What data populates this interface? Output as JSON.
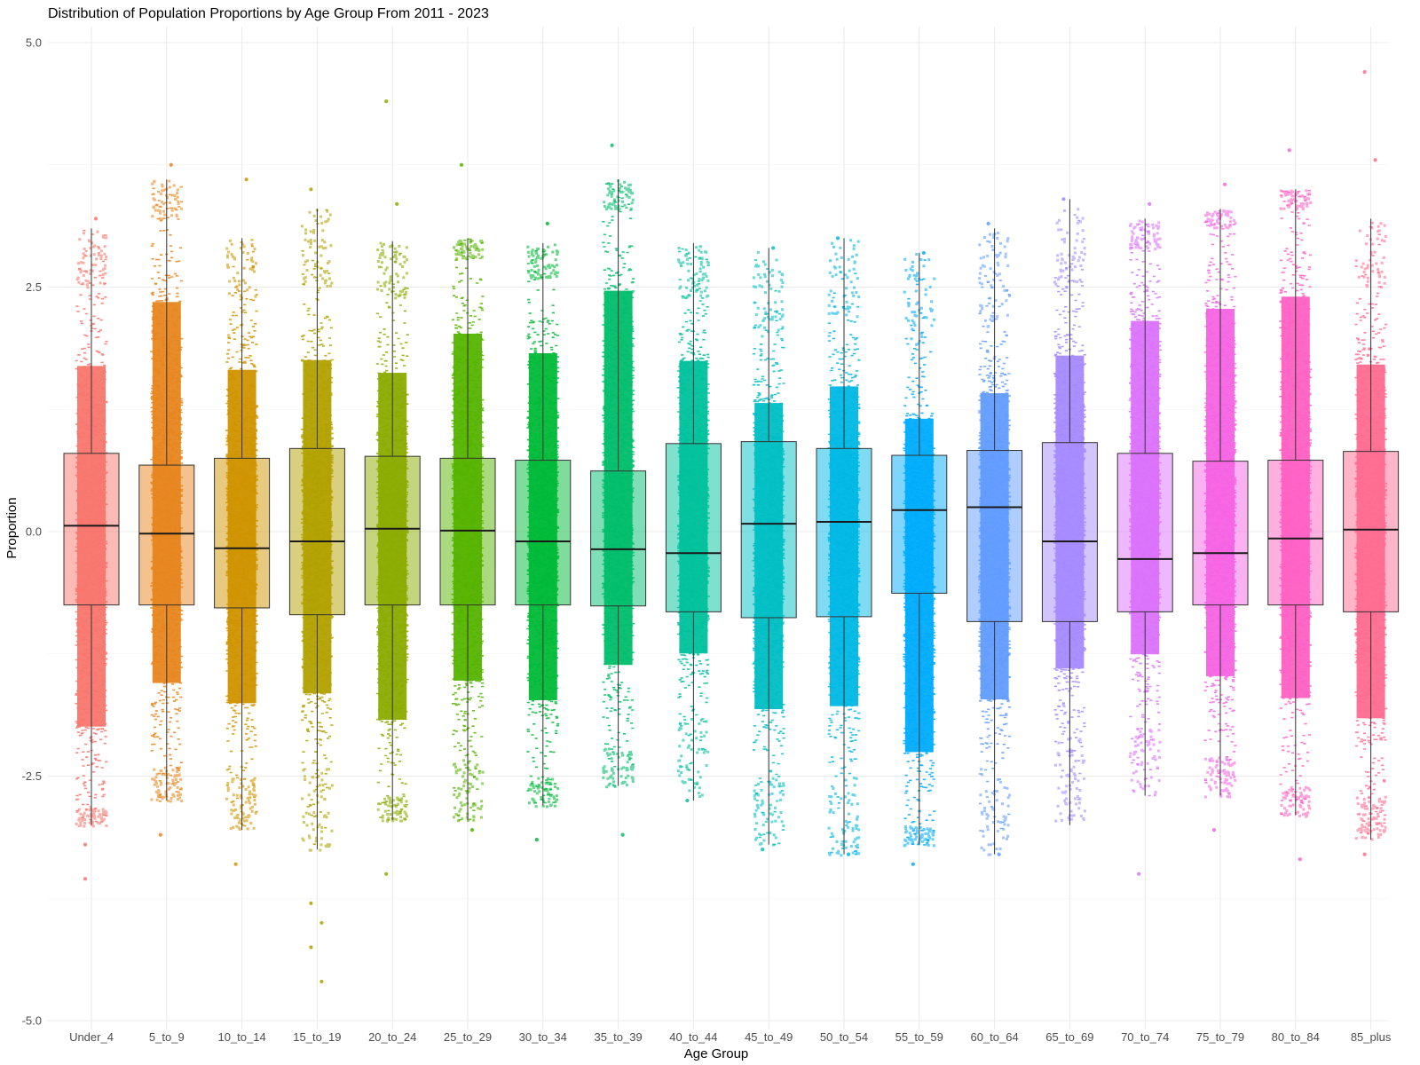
{
  "chart_data": {
    "type": "boxplot",
    "title": "Distribution of Population Proportions by Age Group From 2011 - 2023",
    "xlabel": "Age Group",
    "ylabel": "Proportion",
    "ylim": [
      -5.0,
      5.0
    ],
    "y_ticks": [
      {
        "value": 5.0,
        "label": "5.0"
      },
      {
        "value": 2.5,
        "label": "2.5"
      },
      {
        "value": 0.0,
        "label": "0.0"
      },
      {
        "value": -2.5,
        "label": "-2.5"
      },
      {
        "value": -5.0,
        "label": "-5.0"
      }
    ],
    "grid": true,
    "legend": "none",
    "categories": [
      "Under_4",
      "5_to_9",
      "10_to_14",
      "15_to_19",
      "20_to_24",
      "25_to_29",
      "30_to_34",
      "35_to_39",
      "40_to_44",
      "45_to_49",
      "50_to_54",
      "55_to_59",
      "60_to_64",
      "65_to_69",
      "70_to_74",
      "75_to_79",
      "80_to_84",
      "85_plus"
    ],
    "colors": [
      "#F8766D",
      "#E7851E",
      "#D09400",
      "#B2A100",
      "#8BAB00",
      "#55B400",
      "#00BA38",
      "#00BE6C",
      "#00C19C",
      "#00BFC4",
      "#00B8E5",
      "#00ACFC",
      "#619CFF",
      "#A58AFF",
      "#DB72FB",
      "#F564E3",
      "#FF61C3",
      "#FF6C91"
    ],
    "boxes": [
      {
        "group": "Under_4",
        "whisker_low": -3.0,
        "q1": -0.75,
        "median": 0.06,
        "q3": 0.8,
        "whisker_high": 3.1,
        "spread_low": -2.8,
        "spread_high": 2.5
      },
      {
        "group": "5_to_9",
        "whisker_low": -2.75,
        "q1": -0.75,
        "median": -0.02,
        "q3": 0.68,
        "whisker_high": 3.6,
        "spread_low": -2.4,
        "spread_high": 3.2
      },
      {
        "group": "10_to_14",
        "whisker_low": -3.05,
        "q1": -0.78,
        "median": -0.17,
        "q3": 0.75,
        "whisker_high": 3.0,
        "spread_low": -2.5,
        "spread_high": 2.4
      },
      {
        "group": "15_to_19",
        "whisker_low": -3.25,
        "q1": -0.85,
        "median": -0.1,
        "q3": 0.85,
        "whisker_high": 3.3,
        "spread_low": -2.4,
        "spread_high": 2.5
      },
      {
        "group": "20_to_24",
        "whisker_low": -2.95,
        "q1": -0.75,
        "median": 0.03,
        "q3": 0.77,
        "whisker_high": 2.97,
        "spread_low": -2.7,
        "spread_high": 2.4
      },
      {
        "group": "25_to_29",
        "whisker_low": -2.95,
        "q1": -0.75,
        "median": 0.01,
        "q3": 0.75,
        "whisker_high": 3.0,
        "spread_low": -2.3,
        "spread_high": 2.8
      },
      {
        "group": "30_to_34",
        "whisker_low": -2.8,
        "q1": -0.75,
        "median": -0.1,
        "q3": 0.73,
        "whisker_high": 2.95,
        "spread_low": -2.5,
        "spread_high": 2.6
      },
      {
        "group": "35_to_39",
        "whisker_low": -2.6,
        "q1": -0.76,
        "median": -0.18,
        "q3": 0.62,
        "whisker_high": 3.6,
        "spread_low": -2.2,
        "spread_high": 3.3
      },
      {
        "group": "40_to_44",
        "whisker_low": -2.75,
        "q1": -0.82,
        "median": -0.22,
        "q3": 0.9,
        "whisker_high": 2.95,
        "spread_low": -1.9,
        "spread_high": 2.4
      },
      {
        "group": "45_to_49",
        "whisker_low": -3.2,
        "q1": -0.88,
        "median": 0.08,
        "q3": 0.92,
        "whisker_high": 2.9,
        "spread_low": -2.5,
        "spread_high": 2.0
      },
      {
        "group": "50_to_54",
        "whisker_low": -3.3,
        "q1": -0.87,
        "median": 0.1,
        "q3": 0.85,
        "whisker_high": 3.0,
        "spread_low": -2.5,
        "spread_high": 2.2
      },
      {
        "group": "55_to_59",
        "whisker_low": -3.2,
        "q1": -0.63,
        "median": 0.22,
        "q3": 0.78,
        "whisker_high": 2.85,
        "spread_low": -3.0,
        "spread_high": 1.9
      },
      {
        "group": "60_to_64",
        "whisker_low": -3.3,
        "q1": -0.92,
        "median": 0.25,
        "q3": 0.83,
        "whisker_high": 3.1,
        "spread_low": -2.4,
        "spread_high": 2.1
      },
      {
        "group": "65_to_69",
        "whisker_low": -3.0,
        "q1": -0.92,
        "median": -0.1,
        "q3": 0.91,
        "whisker_high": 3.4,
        "spread_low": -2.1,
        "spread_high": 2.5
      },
      {
        "group": "70_to_74",
        "whisker_low": -2.7,
        "q1": -0.82,
        "median": -0.28,
        "q3": 0.8,
        "whisker_high": 3.2,
        "spread_low": -2.0,
        "spread_high": 2.9
      },
      {
        "group": "75_to_79",
        "whisker_low": -2.7,
        "q1": -0.75,
        "median": -0.22,
        "q3": 0.72,
        "whisker_high": 3.3,
        "spread_low": -2.3,
        "spread_high": 3.1
      },
      {
        "group": "80_to_84",
        "whisker_low": -2.9,
        "q1": -0.75,
        "median": -0.07,
        "q3": 0.73,
        "whisker_high": 3.5,
        "spread_low": -2.6,
        "spread_high": 3.3
      },
      {
        "group": "85_plus",
        "whisker_low": -3.15,
        "q1": -0.82,
        "median": 0.02,
        "q3": 0.82,
        "whisker_high": 3.2,
        "spread_low": -2.7,
        "spread_high": 2.5
      }
    ],
    "outliers": [
      {
        "group": "Under_4",
        "values": [
          -3.55,
          3.2,
          -3.2
        ]
      },
      {
        "group": "5_to_9",
        "values": [
          -3.1,
          3.75
        ]
      },
      {
        "group": "10_to_14",
        "values": [
          -3.4,
          3.6
        ]
      },
      {
        "group": "15_to_19",
        "values": [
          -3.8,
          -4.0,
          -4.25,
          -4.6,
          3.5
        ]
      },
      {
        "group": "20_to_24",
        "values": [
          4.4,
          3.35,
          -3.5
        ]
      },
      {
        "group": "25_to_29",
        "values": [
          3.75,
          -3.05
        ]
      },
      {
        "group": "30_to_34",
        "values": [
          -3.15,
          3.15
        ]
      },
      {
        "group": "35_to_39",
        "values": [
          3.95,
          -3.1
        ]
      },
      {
        "group": "40_to_44",
        "values": [
          -2.75
        ]
      },
      {
        "group": "45_to_49",
        "values": [
          -3.25,
          2.9
        ]
      },
      {
        "group": "50_to_54",
        "values": [
          3.0,
          -3.3
        ]
      },
      {
        "group": "55_to_59",
        "values": [
          -3.4,
          2.85
        ]
      },
      {
        "group": "60_to_64",
        "values": [
          3.15,
          -3.3
        ]
      },
      {
        "group": "65_to_69",
        "values": [
          3.4
        ]
      },
      {
        "group": "70_to_74",
        "values": [
          -3.5,
          3.35
        ]
      },
      {
        "group": "75_to_79",
        "values": [
          -3.05,
          3.55
        ]
      },
      {
        "group": "80_to_84",
        "values": [
          3.9,
          -3.35
        ]
      },
      {
        "group": "85_plus",
        "values": [
          4.7,
          3.8,
          -3.3
        ]
      }
    ]
  }
}
